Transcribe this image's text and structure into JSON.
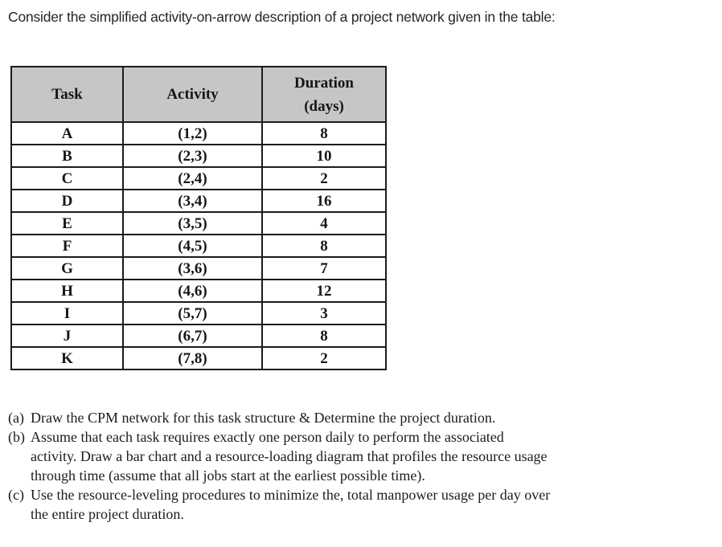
{
  "page": {
    "intro": "Consider the simplified activity-on-arrow description of a project network given in the table:"
  },
  "table": {
    "headers": {
      "task": "Task",
      "activity": "Activity",
      "duration_line1": "Duration",
      "duration_line2": "(days)"
    },
    "rows": [
      [
        "A",
        "(1,2)",
        "8"
      ],
      [
        "B",
        "(2,3)",
        "10"
      ],
      [
        "C",
        "(2,4)",
        "2"
      ],
      [
        "D",
        "(3,4)",
        "16"
      ],
      [
        "E",
        "(3,5)",
        "4"
      ],
      [
        "F",
        "(4,5)",
        "8"
      ],
      [
        "G",
        "(3,6)",
        "7"
      ],
      [
        "H",
        "(4,6)",
        "12"
      ],
      [
        "I",
        "(5,7)",
        "3"
      ],
      [
        "J",
        "(6,7)",
        "8"
      ],
      [
        "K",
        "(7,8)",
        "2"
      ]
    ]
  },
  "questions": [
    {
      "label": "(a)",
      "lines": [
        "Draw the CPM network for this task structure & Determine the project duration."
      ]
    },
    {
      "label": "(b)",
      "lines": [
        "Assume that each task requires exactly one person daily to perform the associated",
        "activity. Draw a bar chart and a resource-loading diagram that profiles the resource usage",
        "through time (assume that all jobs start at the earliest possible time)."
      ]
    },
    {
      "label": "(c)",
      "lines": [
        "Use the resource-leveling procedures to minimize the, total manpower usage per day over",
        "the entire project duration."
      ]
    }
  ],
  "colors": {
    "header_bg": "#c6c6c6",
    "border": "#1b1b1b",
    "text": "#161616"
  }
}
